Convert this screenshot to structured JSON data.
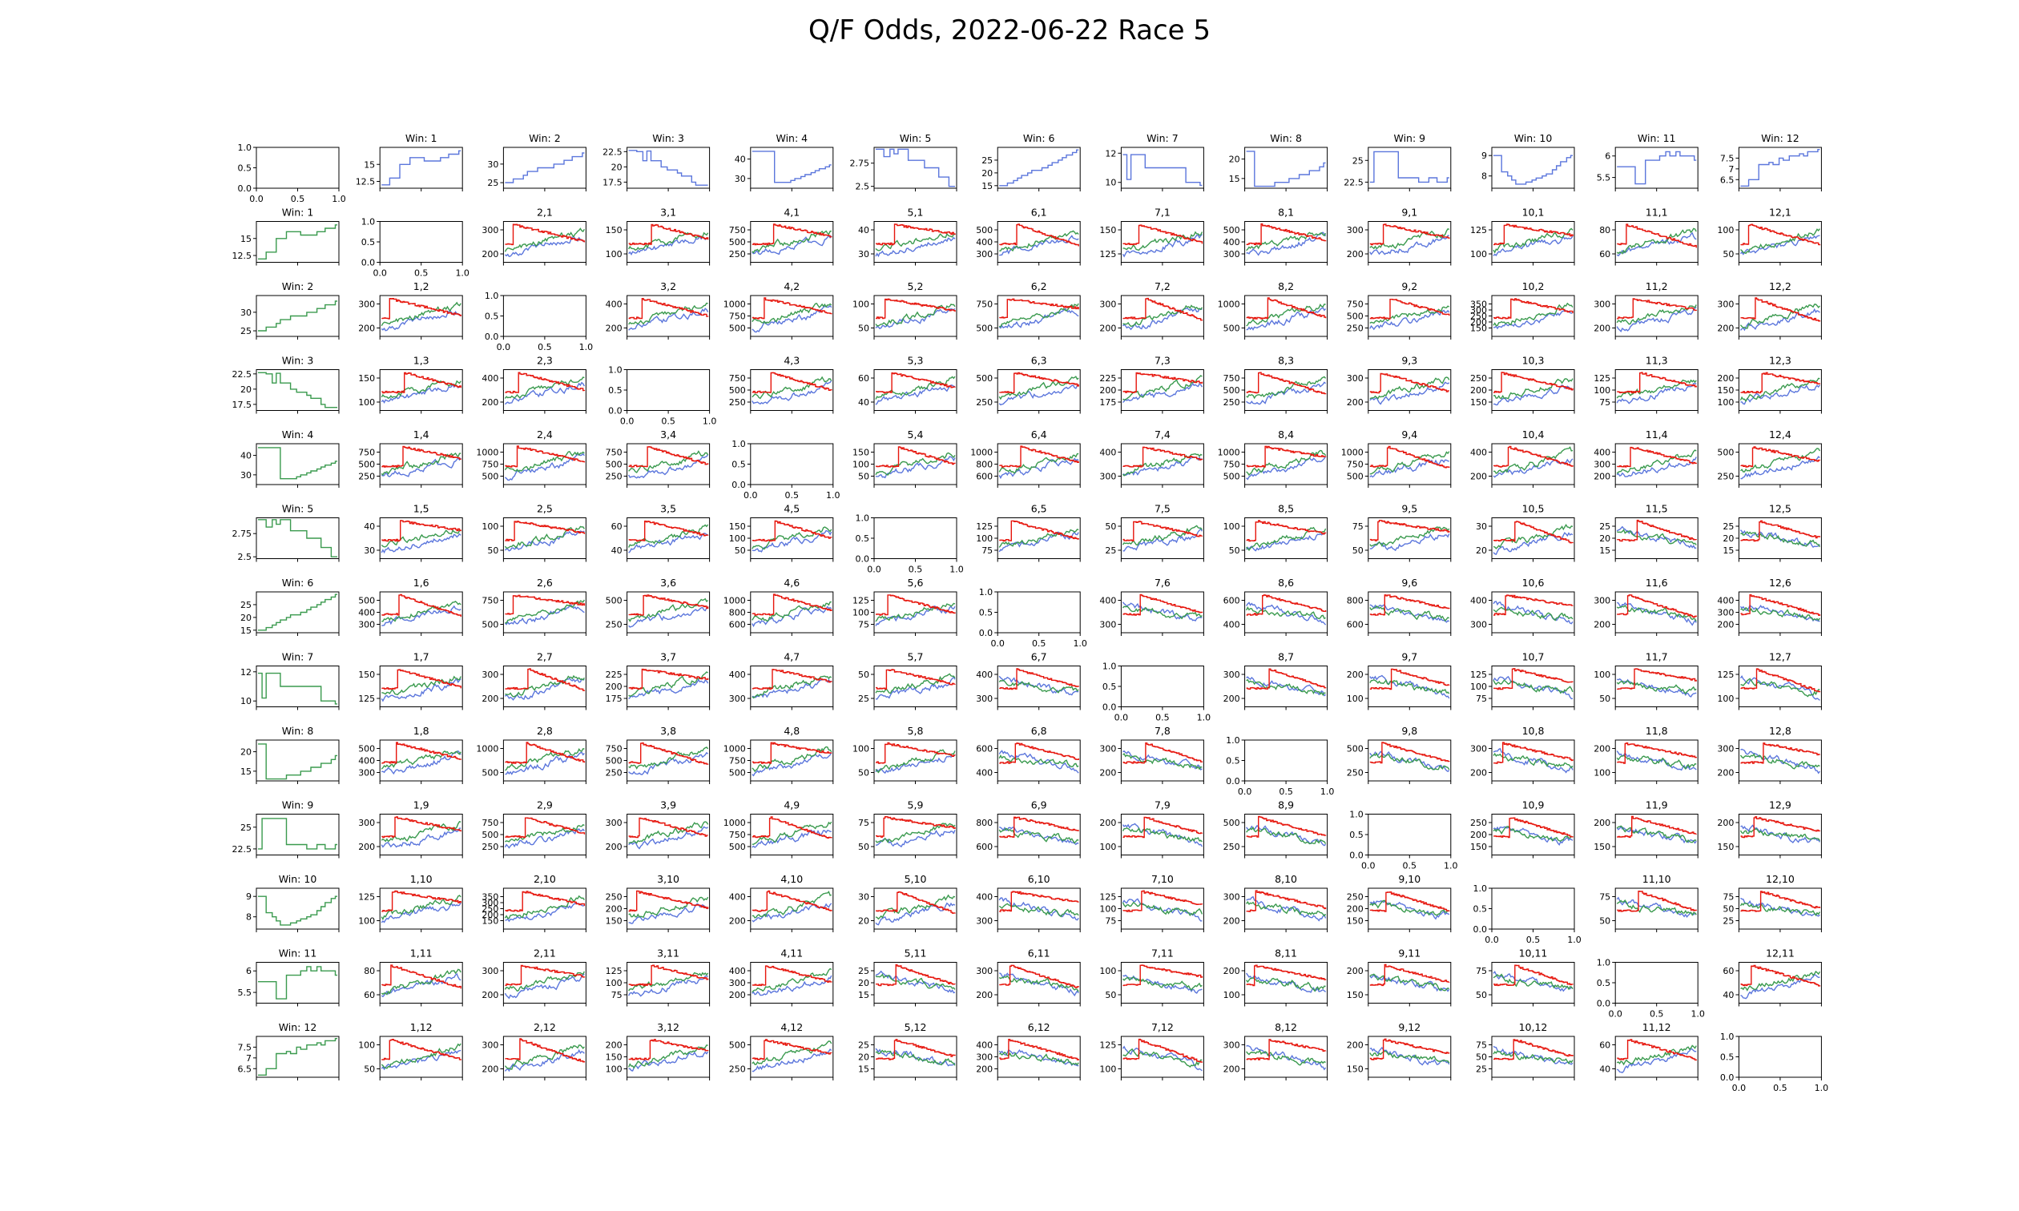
{
  "title": "Q/F Odds, 2022-06-22 Race 5",
  "colors": {
    "blue": "#5b76dc",
    "green": "#3a9a4e",
    "red": "#e6150c",
    "axis": "#000000"
  },
  "grid_size": 13,
  "horses": 12,
  "empty_axis": {
    "xticks": [
      "0.0",
      "0.5",
      "1.0"
    ],
    "yticks": [
      "0.0",
      "0.5",
      "1.0"
    ]
  },
  "chart_data": {
    "type": "line",
    "layout": "13x13 small-multiples; row 0 and column 0 show win odds per horse (row 0 blue, column 0 green); cell (i,j) with i!=j shows Q/F odds trends for pair i,j (blue, green, red lines); diagonal and top-left cells are empty axes",
    "win": [
      {
        "horse": 1,
        "title": "Win: 1",
        "yticks": [
          12.5,
          15.0
        ],
        "range": [
          11.5,
          17.5
        ],
        "shape": [
          12,
          12,
          13,
          13,
          15,
          15,
          16,
          16,
          16,
          15.5,
          15.5,
          15.5,
          16,
          16,
          16.5,
          16.5,
          17
        ]
      },
      {
        "horse": 2,
        "title": "Win: 2",
        "yticks": [
          25,
          30
        ],
        "range": [
          23.5,
          34.5
        ],
        "shape": [
          25,
          25,
          26,
          26,
          27,
          28,
          28,
          29,
          29,
          29,
          30,
          30,
          31,
          31,
          32,
          32,
          33
        ]
      },
      {
        "horse": 3,
        "title": "Win: 3",
        "yticks": [
          17.5,
          20.0,
          22.5
        ],
        "range": [
          16.5,
          23.2
        ],
        "shape": [
          22.7,
          22.7,
          22.5,
          21,
          22.6,
          21,
          21,
          20,
          19.5,
          19.5,
          19,
          18.5,
          18.5,
          17.5,
          17,
          17,
          17
        ]
      },
      {
        "horse": 4,
        "title": "Win: 4",
        "yticks": [
          30,
          40
        ],
        "range": [
          25,
          46
        ],
        "shape": [
          44,
          44,
          44,
          44,
          44,
          28,
          28,
          28,
          29,
          30,
          31,
          32,
          33,
          34,
          35,
          36,
          37
        ]
      },
      {
        "horse": 5,
        "title": "Win: 5",
        "yticks": [
          2.5,
          2.75
        ],
        "range": [
          2.48,
          2.92
        ],
        "shape": [
          2.9,
          2.9,
          2.82,
          2.9,
          2.85,
          2.9,
          2.9,
          2.78,
          2.78,
          2.78,
          2.7,
          2.7,
          2.7,
          2.6,
          2.6,
          2.5,
          2.5
        ]
      },
      {
        "horse": 6,
        "title": "Win: 6",
        "yticks": [
          15,
          20,
          25
        ],
        "range": [
          14,
          30
        ],
        "shape": [
          15,
          15,
          16,
          17,
          18,
          19,
          20,
          21,
          21,
          22,
          23,
          24,
          25,
          26,
          27,
          28,
          29
        ]
      },
      {
        "horse": 7,
        "title": "Win: 7",
        "yticks": [
          10,
          12
        ],
        "range": [
          9.6,
          12.4
        ],
        "shape": [
          11.9,
          10.2,
          11.9,
          11.9,
          11.9,
          11,
          11,
          11,
          11,
          11,
          11,
          11,
          11,
          10,
          10,
          10,
          9.8
        ]
      },
      {
        "horse": 8,
        "title": "Win: 8",
        "yticks": [
          15,
          20
        ],
        "range": [
          12.5,
          23
        ],
        "shape": [
          22,
          22,
          13,
          13,
          13,
          13,
          14,
          14,
          14,
          15,
          15,
          16,
          16,
          17,
          17,
          18,
          19
        ]
      },
      {
        "horse": 9,
        "title": "Win: 9",
        "yticks": [
          22.5,
          25.0
        ],
        "range": [
          21.8,
          26.5
        ],
        "shape": [
          22.5,
          26,
          26,
          26,
          26,
          26,
          23,
          23,
          23,
          23,
          22.5,
          22.5,
          23,
          23,
          22.5,
          22.5,
          23
        ]
      },
      {
        "horse": 10,
        "title": "Win: 10",
        "yticks": [
          8,
          9
        ],
        "range": [
          7.4,
          9.4
        ],
        "shape": [
          9,
          9,
          8.2,
          8,
          7.8,
          7.6,
          7.6,
          7.7,
          7.8,
          7.9,
          8,
          8.1,
          8.3,
          8.5,
          8.7,
          8.9,
          9
        ]
      },
      {
        "horse": 11,
        "title": "Win: 11",
        "yticks": [
          5.5,
          6.0
        ],
        "range": [
          5.25,
          6.2
        ],
        "shape": [
          5.75,
          5.75,
          5.75,
          5.75,
          5.35,
          5.35,
          5.9,
          5.9,
          5.9,
          6.0,
          6.1,
          6.0,
          6.1,
          6.0,
          6.0,
          6.0,
          5.9
        ]
      },
      {
        "horse": 12,
        "title": "Win: 12",
        "yticks": [
          6.5,
          7.0,
          7.5
        ],
        "range": [
          6.1,
          8.0
        ],
        "shape": [
          6.2,
          6.2,
          6.5,
          6.5,
          7.2,
          7.2,
          7.3,
          7.2,
          7.5,
          7.4,
          7.6,
          7.6,
          7.7,
          7.6,
          7.8,
          7.8,
          7.9
        ]
      }
    ],
    "pairs": {
      "1,2": {
        "yticks": [
          200,
          300
        ]
      },
      "1,3": {
        "yticks": [
          100,
          150
        ]
      },
      "1,4": {
        "yticks": [
          250,
          500,
          750
        ]
      },
      "1,5": {
        "yticks": [
          30,
          40
        ]
      },
      "1,6": {
        "yticks": [
          300,
          400,
          500
        ]
      },
      "1,7": {
        "yticks": [
          125,
          150
        ]
      },
      "1,8": {
        "yticks": [
          300,
          400,
          500
        ]
      },
      "1,9": {
        "yticks": [
          200,
          300
        ]
      },
      "1,10": {
        "yticks": [
          100,
          125
        ]
      },
      "1,11": {
        "yticks": [
          60,
          80
        ]
      },
      "1,12": {
        "yticks": [
          50,
          100
        ]
      },
      "2,3": {
        "yticks": [
          200,
          400
        ]
      },
      "2,4": {
        "yticks": [
          500,
          750,
          1000
        ]
      },
      "2,5": {
        "yticks": [
          50,
          100
        ]
      },
      "2,6": {
        "yticks": [
          500,
          750
        ]
      },
      "2,7": {
        "yticks": [
          200,
          300
        ]
      },
      "2,8": {
        "yticks": [
          500,
          1000
        ]
      },
      "2,9": {
        "yticks": [
          250,
          500,
          750
        ]
      },
      "2,10": {
        "yticks": [
          150,
          200,
          250,
          300,
          350
        ]
      },
      "2,11": {
        "yticks": [
          200,
          300
        ]
      },
      "2,12": {
        "yticks": [
          200,
          300
        ]
      },
      "3,4": {
        "yticks": [
          250,
          500,
          750
        ]
      },
      "3,5": {
        "yticks": [
          40,
          60
        ]
      },
      "3,6": {
        "yticks": [
          250,
          500
        ]
      },
      "3,7": {
        "yticks": [
          175,
          200,
          225
        ]
      },
      "3,8": {
        "yticks": [
          250,
          500,
          750
        ]
      },
      "3,9": {
        "yticks": [
          200,
          300
        ]
      },
      "3,10": {
        "yticks": [
          150,
          200,
          250
        ]
      },
      "3,11": {
        "yticks": [
          75,
          100,
          125
        ]
      },
      "3,12": {
        "yticks": [
          100,
          150,
          200
        ]
      },
      "4,5": {
        "yticks": [
          50,
          100,
          150
        ]
      },
      "4,6": {
        "yticks": [
          600,
          800,
          1000
        ]
      },
      "4,7": {
        "yticks": [
          300,
          400
        ]
      },
      "4,8": {
        "yticks": [
          500,
          750,
          1000
        ]
      },
      "4,9": {
        "yticks": [
          500,
          750,
          1000
        ]
      },
      "4,10": {
        "yticks": [
          200,
          400
        ]
      },
      "4,11": {
        "yticks": [
          200,
          300,
          400
        ]
      },
      "4,12": {
        "yticks": [
          250,
          500
        ]
      },
      "5,6": {
        "yticks": [
          75,
          100,
          125
        ]
      },
      "5,7": {
        "yticks": [
          25,
          50
        ]
      },
      "5,8": {
        "yticks": [
          50,
          100
        ]
      },
      "5,9": {
        "yticks": [
          50,
          75
        ]
      },
      "5,10": {
        "yticks": [
          20,
          30
        ]
      },
      "5,11": {
        "yticks": [
          15,
          20,
          25
        ]
      },
      "5,12": {
        "yticks": [
          15,
          20,
          25
        ]
      },
      "6,7": {
        "yticks": [
          300,
          400
        ]
      },
      "6,8": {
        "yticks": [
          400,
          600
        ]
      },
      "6,9": {
        "yticks": [
          600,
          800
        ]
      },
      "6,10": {
        "yticks": [
          300,
          400
        ]
      },
      "6,11": {
        "yticks": [
          200,
          300
        ]
      },
      "6,12": {
        "yticks": [
          200,
          300,
          400
        ]
      },
      "7,8": {
        "yticks": [
          200,
          300
        ]
      },
      "7,9": {
        "yticks": [
          100,
          200
        ]
      },
      "7,10": {
        "yticks": [
          75,
          100,
          125
        ]
      },
      "7,11": {
        "yticks": [
          50,
          100
        ]
      },
      "7,12": {
        "yticks": [
          100,
          125
        ]
      },
      "8,9": {
        "yticks": [
          250,
          500
        ]
      },
      "8,10": {
        "yticks": [
          200,
          300
        ]
      },
      "8,11": {
        "yticks": [
          100,
          200
        ]
      },
      "8,12": {
        "yticks": [
          200,
          300
        ]
      },
      "9,10": {
        "yticks": [
          150,
          200,
          250
        ]
      },
      "9,11": {
        "yticks": [
          150,
          200
        ]
      },
      "9,12": {
        "yticks": [
          150,
          200
        ]
      },
      "10,11": {
        "yticks": [
          50,
          75
        ]
      },
      "10,12": {
        "yticks": [
          25,
          50,
          75
        ]
      },
      "11,12": {
        "yticks": [
          40,
          60
        ]
      }
    }
  }
}
